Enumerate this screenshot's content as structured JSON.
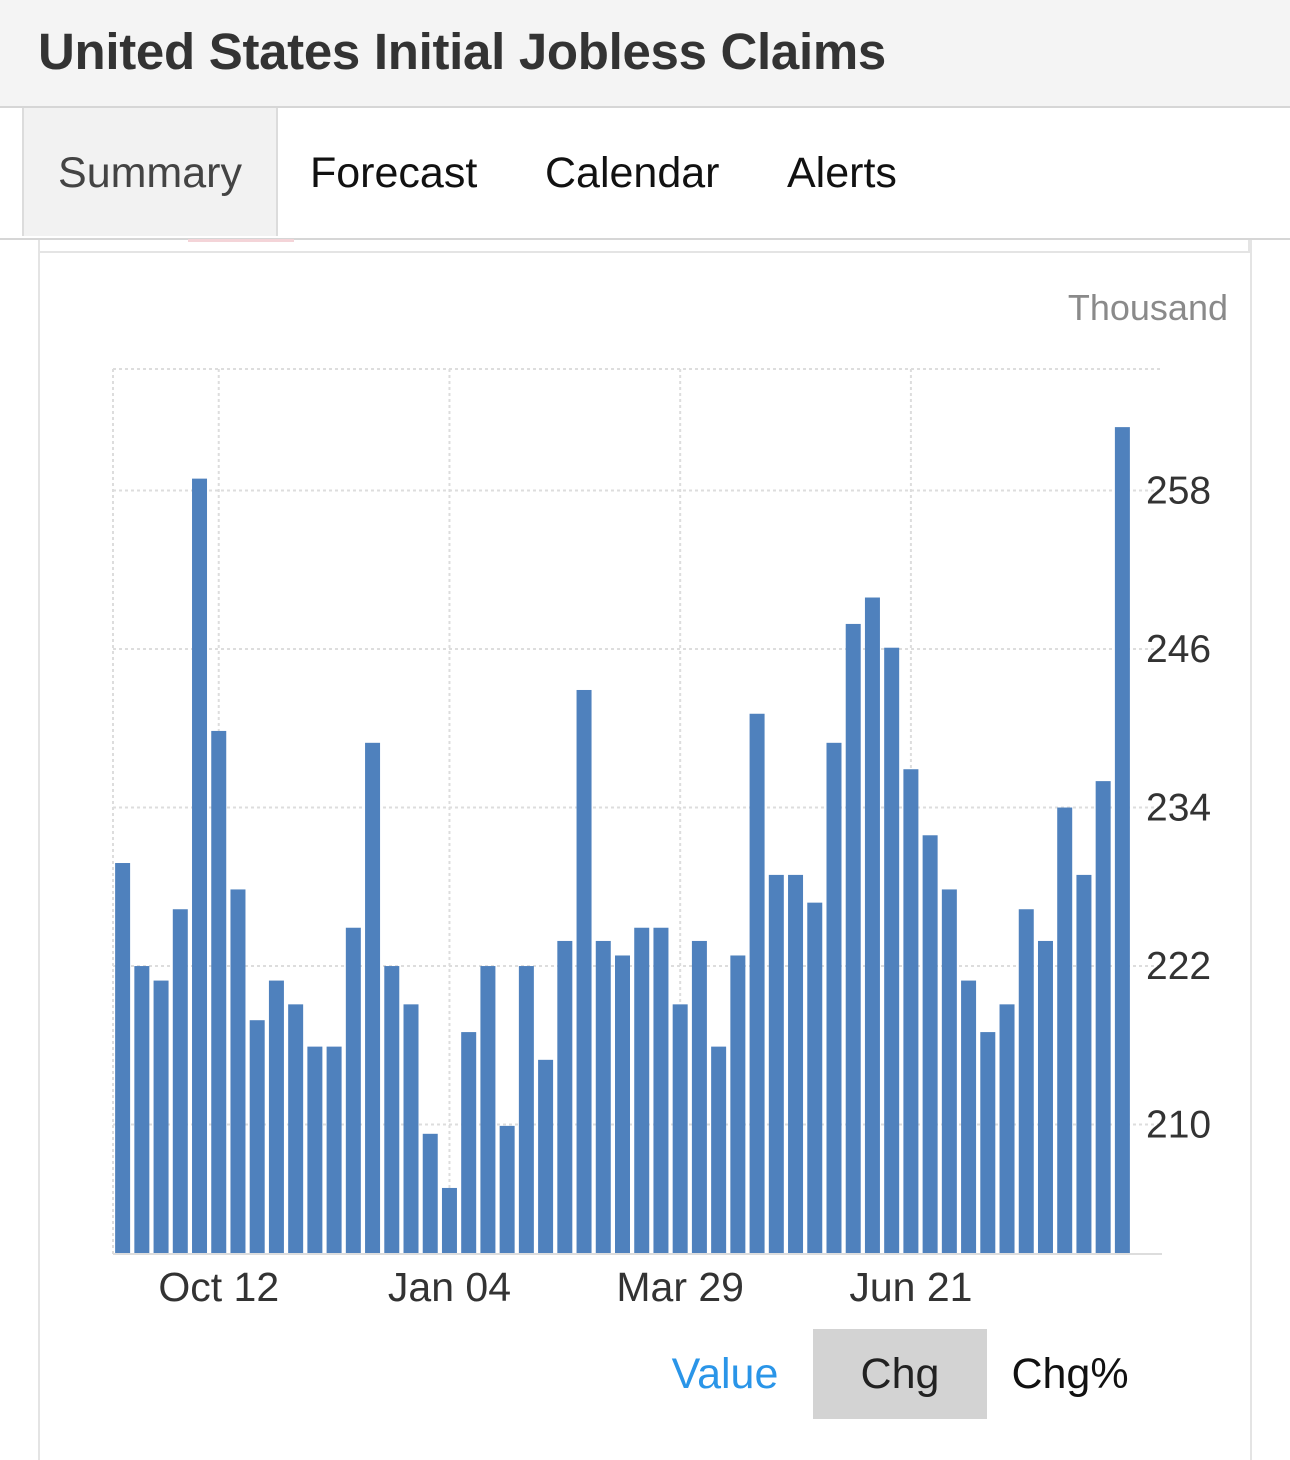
{
  "header": {
    "title": "United States Initial Jobless Claims"
  },
  "tabs": [
    {
      "label": "Summary",
      "active": true
    },
    {
      "label": "Forecast",
      "active": false
    },
    {
      "label": "Calendar",
      "active": false
    },
    {
      "label": "Alerts",
      "active": false
    }
  ],
  "chart_unit": "Thousand",
  "toggles": {
    "value_label": "Value",
    "chg_label": "Chg",
    "chgpct_label": "Chg%"
  },
  "colors": {
    "bar": "#4f81bd",
    "active_toggle_bg": "#d3d3d3",
    "link": "#2a95e8"
  },
  "chart_data": {
    "type": "bar",
    "xlabel": "",
    "ylabel": "",
    "y_unit": "Thousand",
    "ylim": [
      200.2,
      267.2
    ],
    "y_ticks": [
      210,
      222,
      234,
      246,
      258
    ],
    "x_tick_labels": [
      {
        "label": "Oct 12",
        "index": 5
      },
      {
        "label": "Jan 04",
        "index": 17
      },
      {
        "label": "Mar 29",
        "index": 29
      },
      {
        "label": "Jun 21",
        "index": 41
      }
    ],
    "grid": true,
    "series": [
      {
        "values": [
          229.8,
          222,
          220.9,
          226.3,
          258.9,
          239.8,
          227.8,
          217.9,
          220.9,
          219.1,
          215.9,
          215.9,
          224.9,
          238.9,
          222,
          219.1,
          209.3,
          205.2,
          217,
          222,
          209.9,
          222,
          214.9,
          223.9,
          242.9,
          223.9,
          222.8,
          224.9,
          224.9,
          219.1,
          223.9,
          215.9,
          222.8,
          241.1,
          228.9,
          228.9,
          226.8,
          238.9,
          247.9,
          249.9,
          246.1,
          236.9,
          231.9,
          227.8,
          220.9,
          217,
          219.1,
          226.3,
          223.9,
          234,
          228.9,
          236,
          262.8
        ]
      }
    ]
  }
}
